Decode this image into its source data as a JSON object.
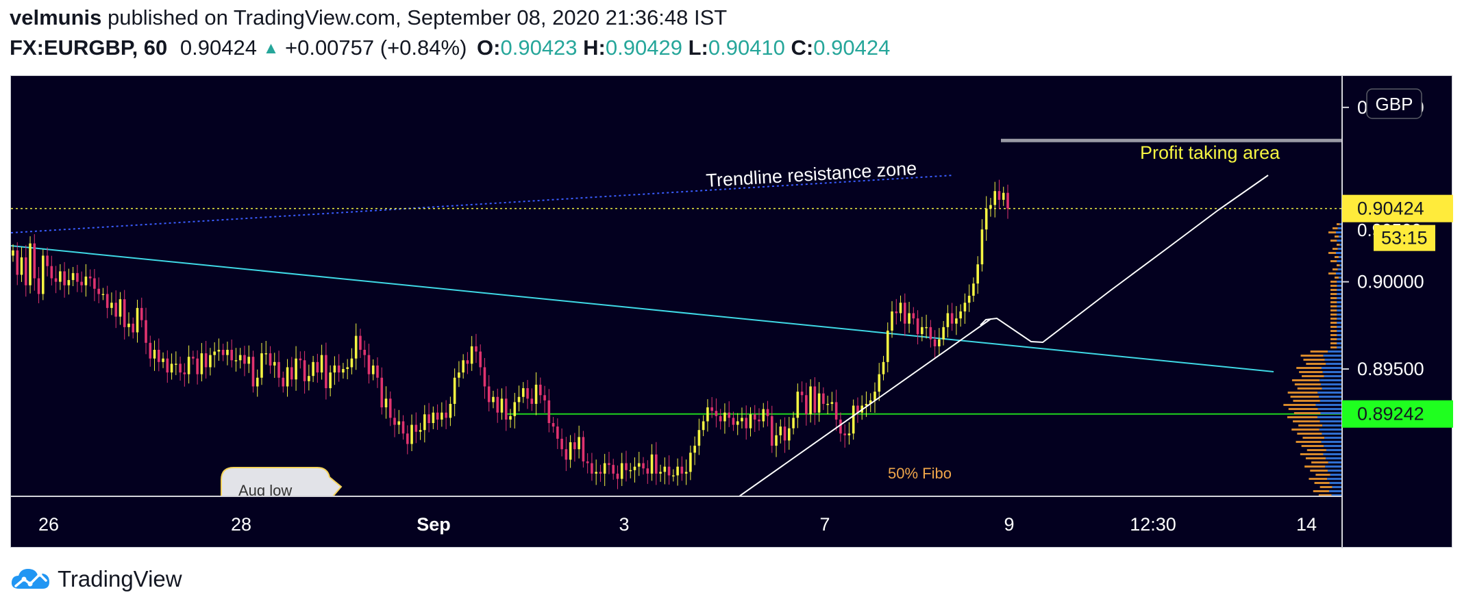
{
  "header": {
    "author": "velmunis",
    "published_text": "published on TradingView.com, September 08, 2020 21:36:48 IST",
    "symbol": "FX:EURGBP, 60",
    "last_price": "0.90424",
    "change": "+0.00757 (+0.84%)",
    "ohlc": {
      "o_label": "O:",
      "o_value": "0.90423",
      "h_label": "H:",
      "h_value": "0.90429",
      "l_label": "L:",
      "l_value": "0.90410",
      "c_label": "C:",
      "c_value": "0.90424"
    }
  },
  "footer": {
    "brand": "TradingView"
  },
  "colors": {
    "background": "#03001f",
    "up_candle": "#f5f542",
    "down_candle": "#e0336f",
    "trendline": "#3fd9e6",
    "fibo_line": "#1fd41f",
    "profit_line": "#9a9aa5",
    "price_label_bg": "#ffeb3b",
    "fibo_label_bg": "#1fff1f",
    "change_up": "#26a69a"
  },
  "chart_data": {
    "type": "candlestick",
    "currency": "GBP",
    "ylim": [
      0.8877,
      0.9118
    ],
    "y_ticks": [
      "0.91000",
      "0.90000",
      "0.89500"
    ],
    "x_ticks": [
      "26",
      "28",
      "Sep",
      "3",
      "7",
      "9",
      "12:30",
      "14"
    ],
    "current_price_label": "0.90424",
    "countdown_label": "53:15",
    "fibo_price_label": "0.89242",
    "fibo_price": 0.89242,
    "profit_price": 0.9081,
    "annotations": {
      "trendline_zone": "Trendline resistance zone",
      "profit_area": "Profit taking area",
      "fibo": "50% Fibo",
      "aug_low": "Aug low"
    },
    "series": [
      {
        "values": [
          0.9018,
          0.9004,
          0.9014,
          0.8998,
          0.9022,
          0.9002,
          0.8993,
          0.9015,
          0.9009,
          0.9002,
          0.9,
          0.9006,
          0.8998,
          0.9001,
          0.9005,
          0.9,
          0.8998,
          0.9003,
          0.9002,
          0.8996,
          0.8993,
          0.8993,
          0.8985,
          0.8988,
          0.898,
          0.899,
          0.8974,
          0.8976,
          0.8971,
          0.8985,
          0.8978,
          0.8965,
          0.8956,
          0.8961,
          0.8954,
          0.8956,
          0.8948,
          0.8953,
          0.8953,
          0.8948,
          0.8947,
          0.8957,
          0.8956,
          0.8947,
          0.8959,
          0.8951,
          0.8958,
          0.896,
          0.8961,
          0.8958,
          0.8961,
          0.8955,
          0.8955,
          0.8958,
          0.8953,
          0.8957,
          0.894,
          0.8945,
          0.8959,
          0.8959,
          0.8952,
          0.8954,
          0.8945,
          0.894,
          0.8951,
          0.8944,
          0.8956,
          0.8955,
          0.8943,
          0.8946,
          0.8954,
          0.8948,
          0.8958,
          0.8939,
          0.8948,
          0.8952,
          0.8948,
          0.895,
          0.8951,
          0.8956,
          0.8969,
          0.8961,
          0.8958,
          0.8947,
          0.8952,
          0.8945,
          0.8928,
          0.8933,
          0.8922,
          0.8918,
          0.892,
          0.8913,
          0.8907,
          0.8918,
          0.8914,
          0.8915,
          0.8924,
          0.8919,
          0.8925,
          0.8921,
          0.8925,
          0.8922,
          0.893,
          0.8945,
          0.8948,
          0.8955,
          0.8953,
          0.8963,
          0.896,
          0.8951,
          0.894,
          0.8931,
          0.8934,
          0.8925,
          0.8933,
          0.8921,
          0.8923,
          0.8931,
          0.8934,
          0.8939,
          0.8933,
          0.893,
          0.8941,
          0.8935,
          0.8932,
          0.8919,
          0.8917,
          0.891,
          0.8904,
          0.8898,
          0.8908,
          0.8904,
          0.8911,
          0.8897,
          0.8896,
          0.889,
          0.8891,
          0.889,
          0.8896,
          0.8895,
          0.889,
          0.8887,
          0.8896,
          0.8892,
          0.8892,
          0.8894,
          0.8896,
          0.8893,
          0.889,
          0.8901,
          0.889,
          0.8891,
          0.8894,
          0.8889,
          0.8889,
          0.8894,
          0.889,
          0.8891,
          0.8902,
          0.8906,
          0.8915,
          0.892,
          0.8928,
          0.8926,
          0.8923,
          0.892,
          0.8925,
          0.8922,
          0.8918,
          0.892,
          0.8922,
          0.8916,
          0.8924,
          0.8921,
          0.892,
          0.8927,
          0.8923,
          0.8906,
          0.8912,
          0.8917,
          0.8909,
          0.8916,
          0.8922,
          0.8937,
          0.8935,
          0.8924,
          0.894,
          0.8925,
          0.8936,
          0.893,
          0.893,
          0.8931,
          0.8921,
          0.8913,
          0.8912,
          0.8913,
          0.8929,
          0.8925,
          0.8929,
          0.893,
          0.8932,
          0.8937,
          0.8947,
          0.8954,
          0.8972,
          0.8983,
          0.8982,
          0.8988,
          0.8976,
          0.8982,
          0.8979,
          0.897,
          0.8974,
          0.8974,
          0.8967,
          0.8963,
          0.8967,
          0.8974,
          0.8982,
          0.8976,
          0.8979,
          0.8983,
          0.8988,
          0.8992,
          0.8999,
          0.901,
          0.903,
          0.9042,
          0.9044,
          0.9052,
          0.9047,
          0.9051,
          0.9042
        ]
      }
    ]
  }
}
